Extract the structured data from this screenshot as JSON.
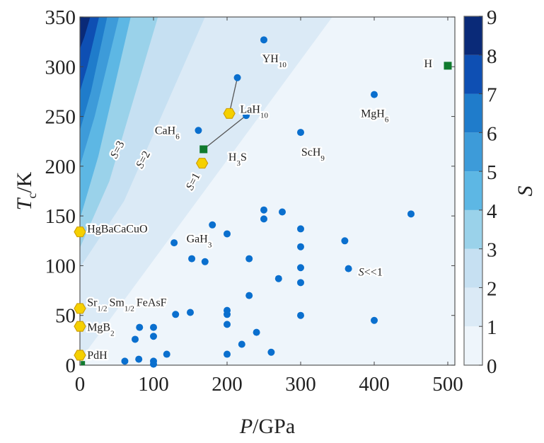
{
  "chart_data": {
    "type": "scatter",
    "title": "",
    "xlabel": {
      "italic": "P",
      "rest": "/GPa"
    },
    "ylabel": {
      "italic": "T",
      "sub": "c",
      "rest": "/K"
    },
    "xlim": [
      0,
      510
    ],
    "ylim": [
      0,
      350
    ],
    "xticks": [
      0,
      100,
      200,
      300,
      400,
      500
    ],
    "yticks": [
      0,
      50,
      100,
      150,
      200,
      250,
      300,
      350
    ],
    "grid": false,
    "colorbar": {
      "label": "S",
      "ticks": [
        0,
        1,
        2,
        3,
        4,
        5,
        6,
        7,
        8,
        9
      ],
      "levels": [
        {
          "range": [
            0,
            1
          ],
          "color": "#eef5fb"
        },
        {
          "range": [
            1,
            2
          ],
          "color": "#dbeaf6"
        },
        {
          "range": [
            2,
            3
          ],
          "color": "#c6e0f2"
        },
        {
          "range": [
            3,
            4
          ],
          "color": "#9ad2ea"
        },
        {
          "range": [
            4,
            5
          ],
          "color": "#5db7e4"
        },
        {
          "range": [
            5,
            6
          ],
          "color": "#3d9bd9"
        },
        {
          "range": [
            6,
            7
          ],
          "color": "#1f7ccb"
        },
        {
          "range": [
            7,
            8
          ],
          "color": "#0e4fb3"
        },
        {
          "range": [
            8,
            9
          ],
          "color": "#0a2a78"
        }
      ]
    },
    "contour_boundaries": [
      {
        "level": 1,
        "points": [
          [
            0,
            5
          ],
          [
            190,
            196
          ],
          [
            343,
            350
          ]
        ]
      },
      {
        "level": 2,
        "points": [
          [
            0,
            98
          ],
          [
            60,
            165
          ],
          [
            170,
            350
          ]
        ]
      },
      {
        "level": 3,
        "points": [
          [
            0,
            118
          ],
          [
            40,
            185
          ],
          [
            106,
            350
          ]
        ]
      },
      {
        "level": 4,
        "points": [
          [
            0,
            147
          ],
          [
            25,
            210
          ],
          [
            69,
            350
          ]
        ]
      },
      {
        "level": 5,
        "points": [
          [
            0,
            200
          ],
          [
            20,
            250
          ],
          [
            53,
            350
          ]
        ]
      },
      {
        "level": 6,
        "points": [
          [
            0,
            236
          ],
          [
            15,
            275
          ],
          [
            37,
            350
          ]
        ]
      },
      {
        "level": 7,
        "points": [
          [
            0,
            275
          ],
          [
            10,
            300
          ],
          [
            26,
            350
          ]
        ]
      },
      {
        "level": 8,
        "points": [
          [
            0,
            318
          ],
          [
            6,
            330
          ],
          [
            14,
            350
          ]
        ]
      }
    ],
    "contour_labels": [
      {
        "text": "S=3",
        "x": 55,
        "y": 215
      },
      {
        "text": "S=2",
        "x": 90,
        "y": 205
      },
      {
        "text": "S=1",
        "x": 158,
        "y": 183
      },
      {
        "text": "S<<1",
        "x": 395,
        "y": 90
      }
    ],
    "series": [
      {
        "name": "calculated",
        "marker": "circle",
        "color": "#0a6fce",
        "points": [
          [
            250,
            327
          ],
          [
            214,
            289
          ],
          [
            226,
            251
          ],
          [
            161,
            236
          ],
          [
            300,
            234
          ],
          [
            400,
            272
          ],
          [
            128,
            123
          ],
          [
            180,
            141
          ],
          [
            200,
            132
          ],
          [
            152,
            107
          ],
          [
            170,
            104
          ],
          [
            230,
            107
          ],
          [
            250,
            156
          ],
          [
            250,
            147
          ],
          [
            275,
            154
          ],
          [
            300,
            137
          ],
          [
            300,
            119
          ],
          [
            300,
            98
          ],
          [
            360,
            125
          ],
          [
            365,
            97
          ],
          [
            270,
            87
          ],
          [
            300,
            83
          ],
          [
            230,
            70
          ],
          [
            450,
            152
          ],
          [
            300,
            50
          ],
          [
            400,
            45
          ],
          [
            130,
            51
          ],
          [
            150,
            53
          ],
          [
            81,
            38
          ],
          [
            100,
            38
          ],
          [
            75,
            26
          ],
          [
            100,
            29
          ],
          [
            61,
            4
          ],
          [
            80,
            6
          ],
          [
            100,
            4
          ],
          [
            100,
            1
          ],
          [
            118,
            11
          ],
          [
            200,
            55
          ],
          [
            200,
            51
          ],
          [
            200,
            41
          ],
          [
            240,
            33
          ],
          [
            220,
            21
          ],
          [
            200,
            11
          ],
          [
            260,
            13
          ]
        ]
      },
      {
        "name": "experimental",
        "marker": "hexagon",
        "color": "#f5d000",
        "points": [
          [
            203,
            253
          ],
          [
            166,
            203
          ],
          [
            0,
            134
          ],
          [
            0,
            57
          ],
          [
            0,
            39
          ],
          [
            0,
            10
          ]
        ]
      },
      {
        "name": "metallic-hydrogen",
        "marker": "square",
        "color": "#0f7a2e",
        "points": [
          [
            168,
            217
          ],
          [
            500,
            301
          ],
          [
            4,
            2
          ]
        ]
      }
    ],
    "connectors": [
      {
        "from": [
          214,
          289
        ],
        "to": [
          203,
          253
        ]
      },
      {
        "from": [
          226,
          251
        ],
        "to": [
          168,
          217
        ]
      }
    ],
    "annotations": [
      {
        "base": "YH",
        "sub": "10",
        "x": 243,
        "y": 308
      },
      {
        "base": "LaH",
        "sub": "10",
        "x": 213,
        "y": 257
      },
      {
        "base": "CaH",
        "sub": "6",
        "x": 97,
        "y": 236
      },
      {
        "base": "H",
        "sub": "3",
        "post": "S",
        "x": 197,
        "y": 209
      },
      {
        "base": "ScH",
        "sub": "9",
        "x": 296,
        "y": 214
      },
      {
        "base": "MgH",
        "sub": "6",
        "x": 377,
        "y": 253
      },
      {
        "base": "H",
        "sub": "",
        "x": 463,
        "y": 303
      },
      {
        "base": "GaH",
        "sub": "3",
        "x": 140,
        "y": 127
      },
      {
        "base": "HgBaCaCuO",
        "sub": "",
        "x": 5,
        "y": 137
      },
      {
        "base": "Sr",
        "sub": "1/2",
        "post2": "Sm",
        "sub2": "1/2",
        "post3": "FeAsF",
        "x": 5,
        "y": 63
      },
      {
        "base": "MgB",
        "sub": "2",
        "x": 5,
        "y": 38
      },
      {
        "base": "PdH",
        "sub": "",
        "x": 5,
        "y": 10
      }
    ]
  }
}
